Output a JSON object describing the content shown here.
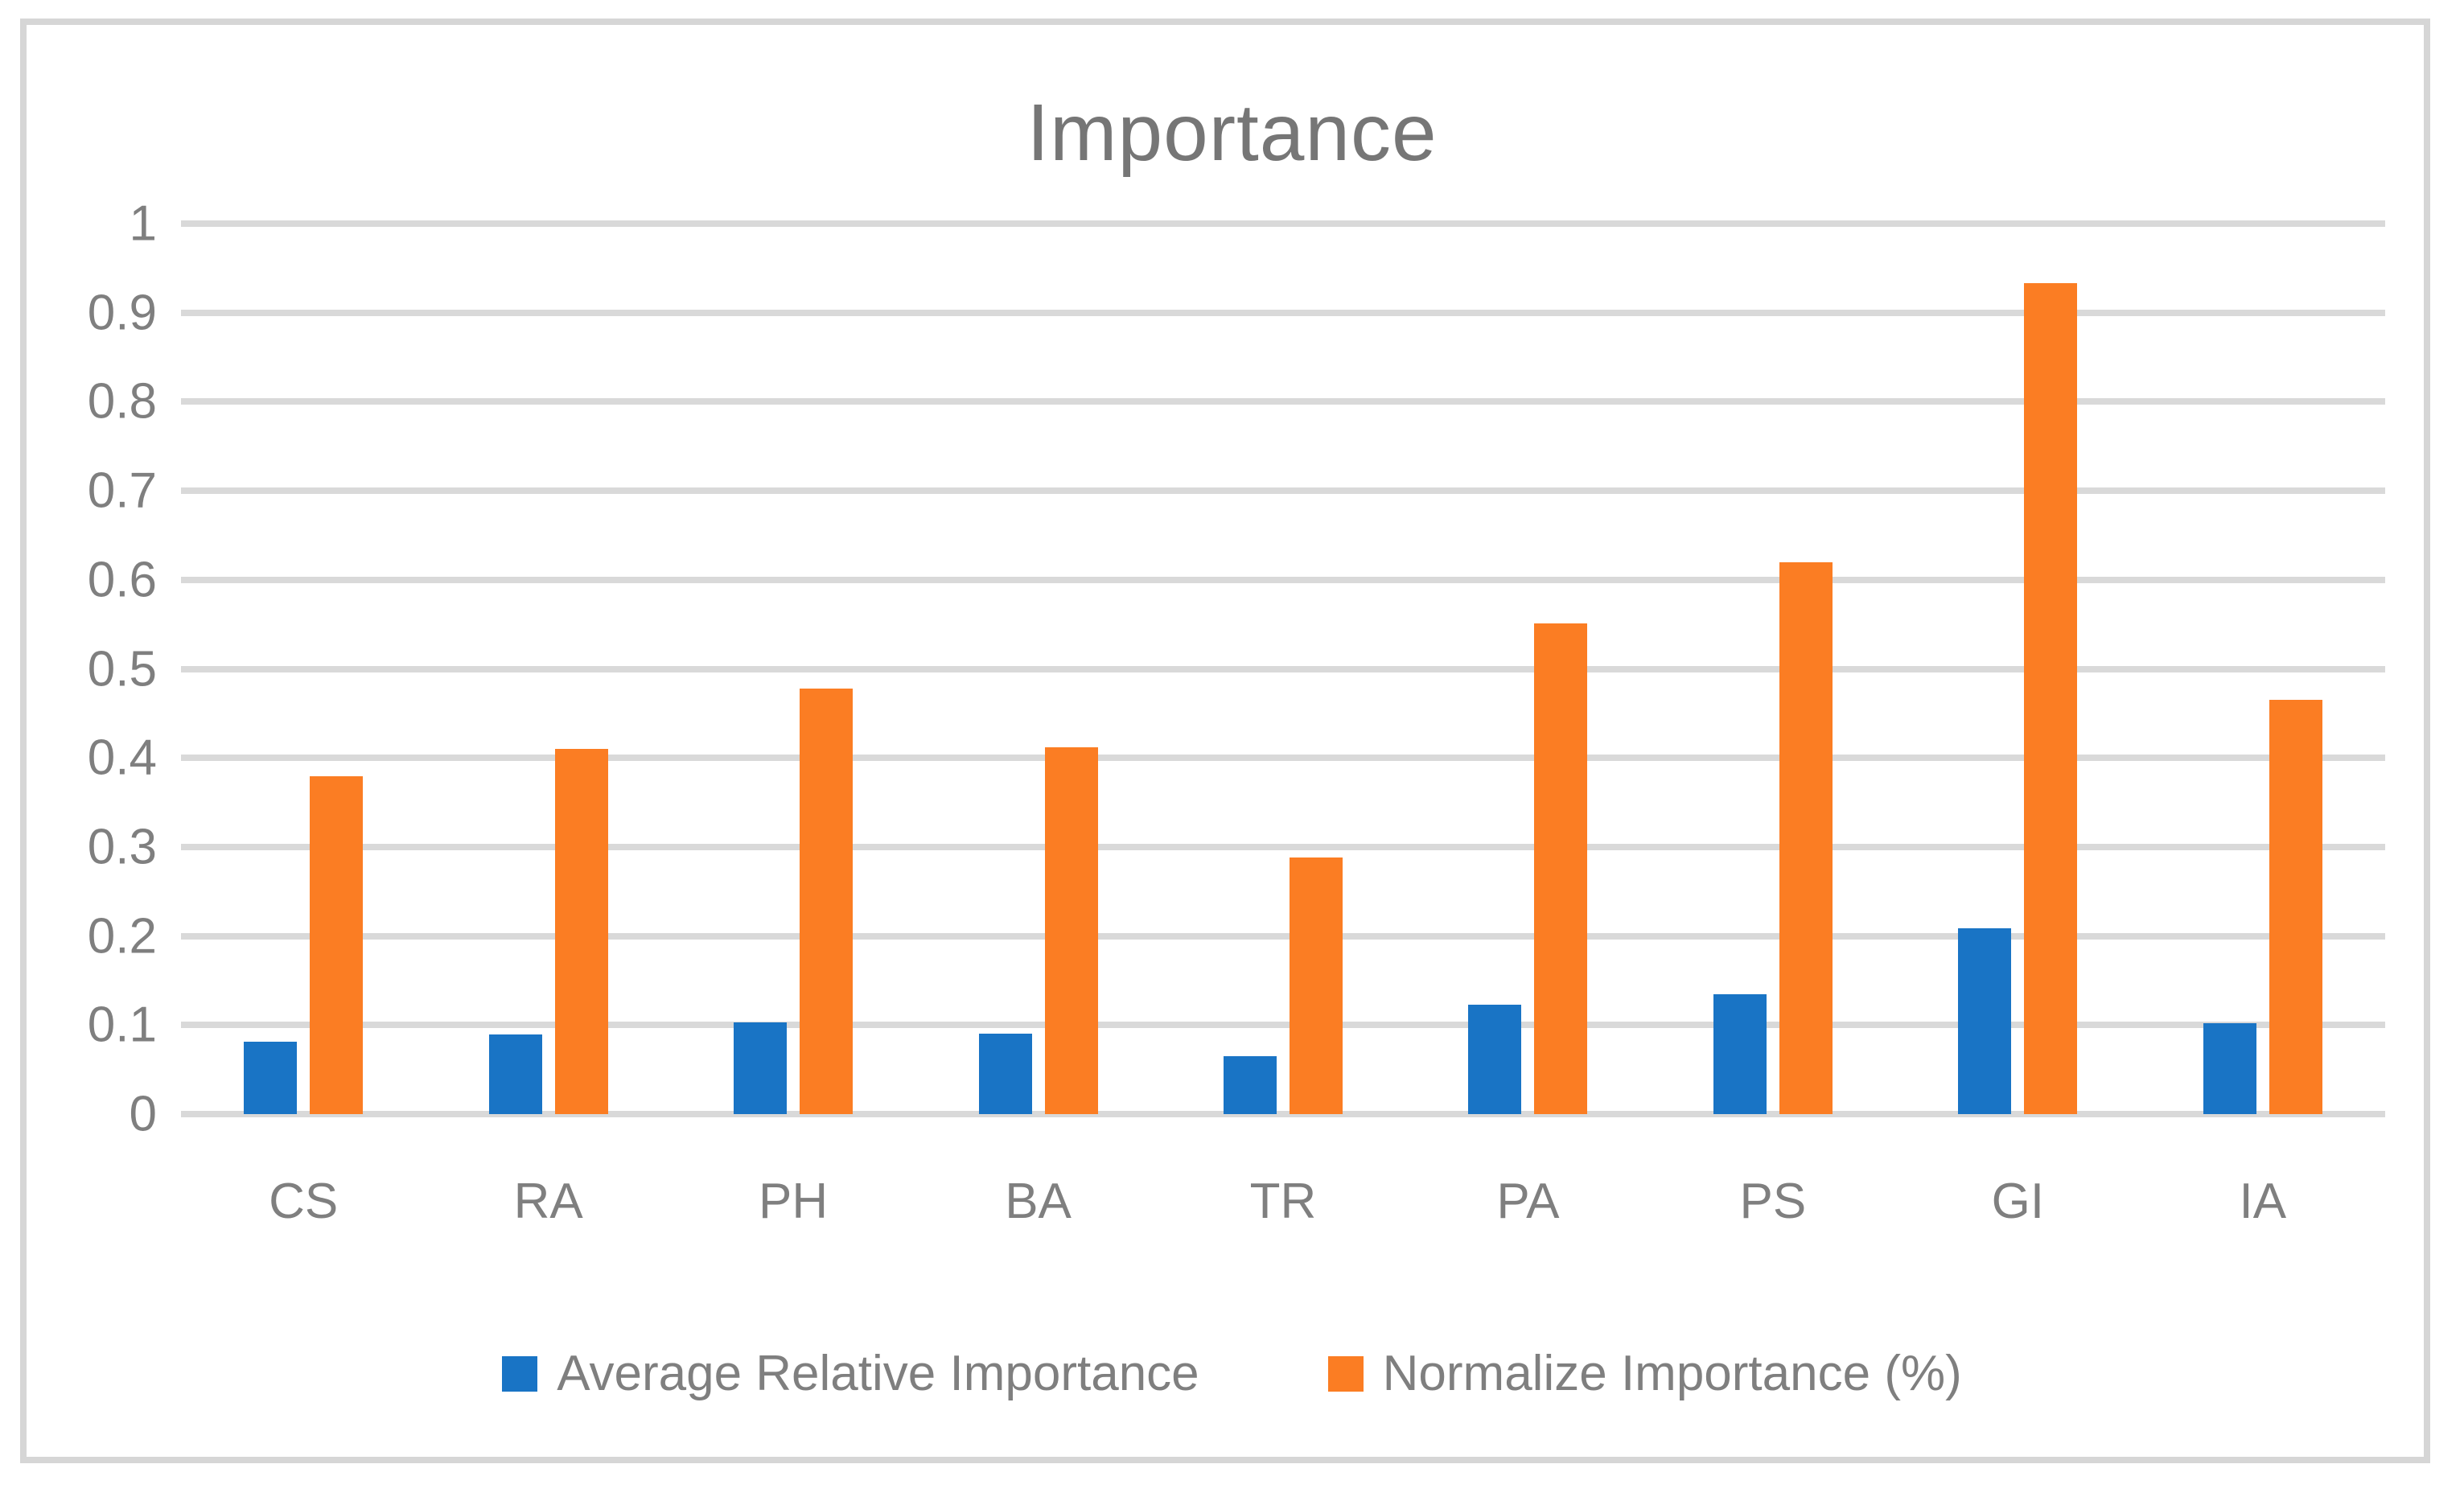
{
  "chart_data": {
    "type": "bar",
    "title": "Importance",
    "categories": [
      "CS",
      "RA",
      "PH",
      "BA",
      "TR",
      "PA",
      "PS",
      "GI",
      "IA"
    ],
    "series": [
      {
        "name": "Average Relative Importance",
        "color": "#1974c5",
        "values": [
          0.081,
          0.089,
          0.103,
          0.09,
          0.065,
          0.123,
          0.135,
          0.209,
          0.102
        ]
      },
      {
        "name": "Normalize Importance (%)",
        "color": "#fb7d23",
        "values": [
          0.379,
          0.41,
          0.478,
          0.412,
          0.288,
          0.551,
          0.62,
          0.933,
          0.465
        ]
      }
    ],
    "xlabel": "",
    "ylabel": "",
    "ylim": [
      0,
      1
    ],
    "ytick_step": 0.1,
    "ytick_labels": [
      "0",
      "0.1",
      "0.2",
      "0.3",
      "0.4",
      "0.5",
      "0.6",
      "0.7",
      "0.8",
      "0.9",
      "1"
    ],
    "grid": "horizontal",
    "legend_position": "bottom"
  },
  "style": {
    "gridline_color": "#d9d9d9",
    "frame_color": "#d6d6d6",
    "text_color": "#7f7f7f",
    "title_color": "#767676",
    "background": "#ffffff"
  }
}
